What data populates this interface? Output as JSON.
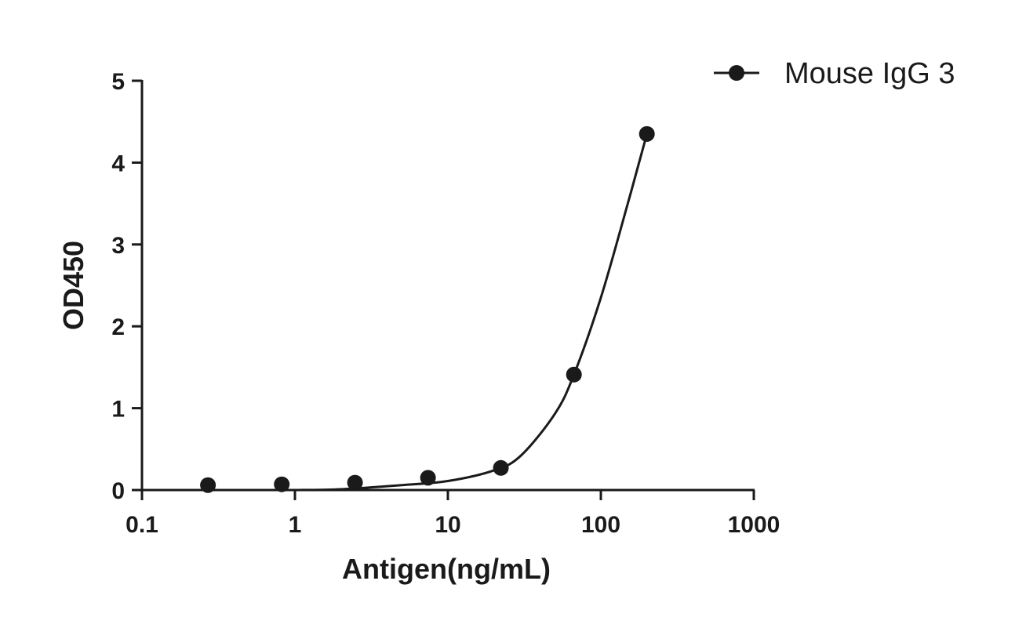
{
  "chart_data": {
    "type": "scatter",
    "xlabel": "Antigen(ng/mL)",
    "ylabel": "OD450",
    "x_scale": "log",
    "xlim": [
      0.1,
      1000
    ],
    "ylim": [
      0,
      5
    ],
    "x_ticks": [
      "0.1",
      "1",
      "10",
      "100",
      "1000"
    ],
    "y_ticks": [
      "0",
      "1",
      "2",
      "3",
      "4",
      "5"
    ],
    "grid": false,
    "legend_position": "top-right",
    "series": [
      {
        "name": "Mouse IgG 3",
        "marker": "circle",
        "color": "#1a1a1a",
        "x": [
          0.27,
          0.82,
          2.47,
          7.41,
          22.2,
          66.7,
          200
        ],
        "y": [
          0.06,
          0.07,
          0.09,
          0.15,
          0.27,
          1.41,
          4.35
        ],
        "fit": "sigmoidal",
        "fit_points": {
          "x": [
            1,
            2,
            5,
            10,
            20,
            30,
            50,
            66.7,
            100,
            150,
            200
          ],
          "y": [
            0.0,
            0.01,
            0.06,
            0.11,
            0.24,
            0.42,
            0.93,
            1.41,
            2.35,
            3.5,
            4.35
          ]
        }
      }
    ]
  }
}
